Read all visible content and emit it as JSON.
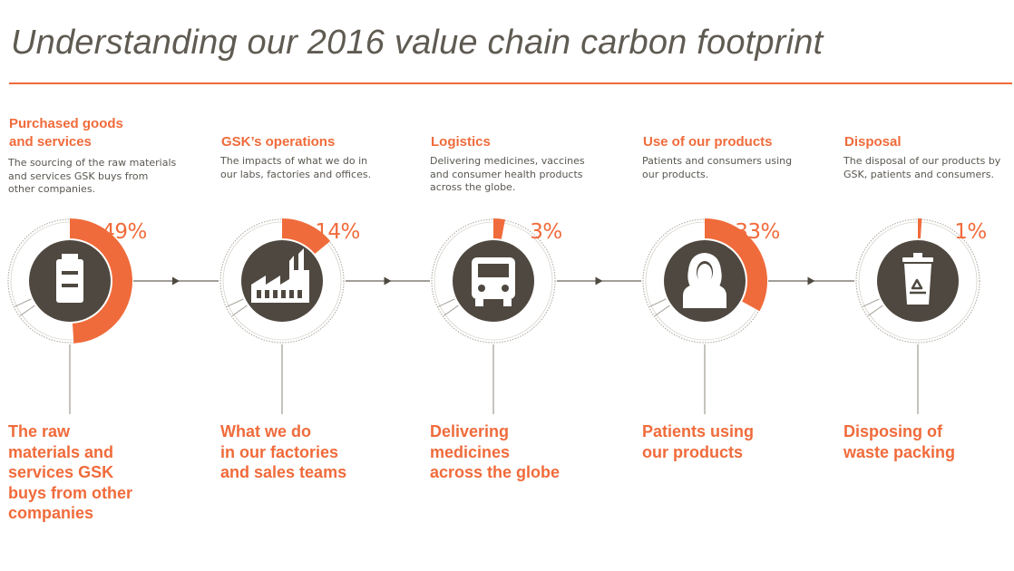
{
  "title": "Understanding our 2016 value chain carbon footprint",
  "colors": {
    "accent": "#f06b3b",
    "dark": "#4e4840",
    "text": "#5a5650",
    "ring": "#b5b1aa"
  },
  "stages": [
    {
      "heading": "Purchased goods\nand services",
      "description": "The sourcing of the raw materials\nand services GSK buys from\nother companies.",
      "percent_label": "49%",
      "share": 49,
      "icon": "raw-materials-icon",
      "bottom_label": "The raw\nmaterials and\nservices GSK\nbuys from other\ncompanies"
    },
    {
      "heading": "GSK’s operations",
      "description": "The impacts of what we do in\nour labs, factories and offices.",
      "percent_label": "14%",
      "share": 14,
      "icon": "factory-icon",
      "bottom_label": "What we do\nin our factories\nand sales teams"
    },
    {
      "heading": "Logistics",
      "description": "Delivering medicines, vaccines\nand consumer health products\nacross the globe.",
      "percent_label": "3%",
      "share": 3,
      "icon": "truck-icon",
      "bottom_label": "Delivering\nmedicines\nacross the globe"
    },
    {
      "heading": "Use of our products",
      "description": "Patients and consumers using\nour products.",
      "percent_label": "33%",
      "share": 33,
      "icon": "person-icon",
      "bottom_label": "Patients using\nour products"
    },
    {
      "heading": "Disposal",
      "description": "The disposal of our products by\nGSK, patients and consumers.",
      "percent_label": "1%",
      "share": 1,
      "icon": "recycle-bin-icon",
      "bottom_label": "Disposing of\nwaste packing"
    }
  ]
}
